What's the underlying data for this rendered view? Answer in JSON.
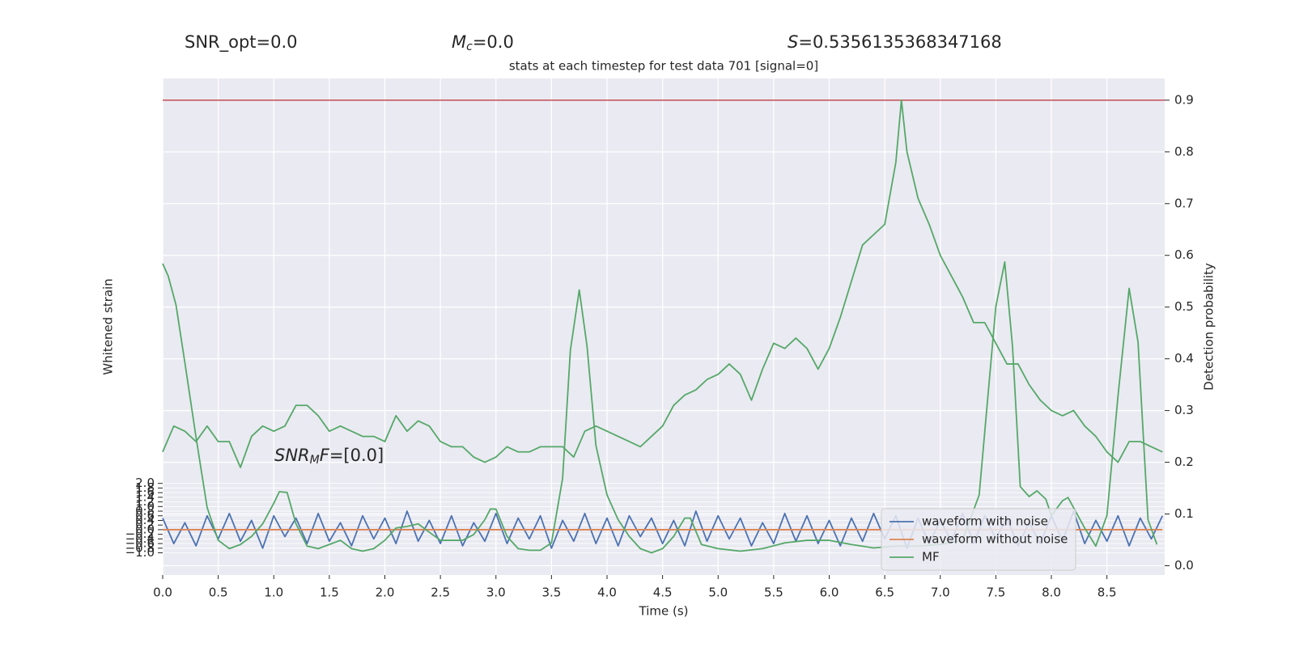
{
  "chart_data": {
    "type": "line",
    "title": "stats at each timestep for test data 701 [signal=0]",
    "header_texts": [
      [
        {
          "text": "SNR_opt=0.0",
          "style": "normal"
        }
      ],
      [
        {
          "text": "M",
          "style": "italic"
        },
        {
          "text": "c",
          "style": "italic-sub"
        },
        {
          "text": "=0.0",
          "style": "normal"
        }
      ],
      [
        {
          "text": "S",
          "style": "italic"
        },
        {
          "text": "=0.5356135368347168",
          "style": "normal"
        }
      ]
    ],
    "annotation": [
      {
        "text": "SNR",
        "style": "italic"
      },
      {
        "text": "M",
        "style": "italic-sub"
      },
      {
        "text": "F",
        "style": "italic"
      },
      {
        "text": "=[0.0]",
        "style": "normal"
      }
    ],
    "xlabel": "Time (s)",
    "ylabel": "Whitened strain",
    "y2label": "Detection probability",
    "xlim": [
      0,
      9.02
    ],
    "ylim": [
      -1.96,
      19.5
    ],
    "y2lim": [
      -0.018,
      0.942
    ],
    "xticks": [
      {
        "value": 0,
        "label": "0.0"
      },
      0.5,
      {
        "value": 1,
        "label": "1.0"
      },
      1.5,
      {
        "value": 2,
        "label": "2.0"
      },
      2.5,
      {
        "value": 3,
        "label": "3.0"
      },
      3.5,
      {
        "value": 4,
        "label": "4.0"
      },
      4.5,
      {
        "value": 5,
        "label": "5.0"
      },
      5.5,
      {
        "value": 6,
        "label": "6.0"
      },
      6.5,
      {
        "value": 7,
        "label": "7.0"
      },
      7.5,
      {
        "value": 8,
        "label": "8.0"
      },
      8.5
    ],
    "yticks": [
      {
        "value": -1,
        "label": "−1.0"
      },
      {
        "value": -0.8,
        "label": "−0.8"
      },
      {
        "value": -0.6,
        "label": "−0.6"
      },
      {
        "value": -0.4,
        "label": "−0.4"
      },
      {
        "value": -0.2,
        "label": "−0.2"
      },
      {
        "value": 0,
        "label": "0.0"
      },
      0.2,
      0.4,
      0.6,
      0.8,
      {
        "value": 1,
        "label": "1.0"
      },
      1.2,
      1.4,
      1.6,
      1.8,
      {
        "value": 2,
        "label": "2.0"
      }
    ],
    "y2ticks": [
      {
        "value": 0,
        "label": "0.0"
      },
      0.1,
      0.2,
      0.3,
      0.4,
      0.5,
      0.6,
      0.7,
      0.8,
      0.9
    ],
    "grid": true,
    "legend": "lower right",
    "hline": {
      "value": 0.9,
      "color": "#c44e52",
      "axis": "y2"
    },
    "series": [
      {
        "name": "waveform with noise",
        "color": "#4c72b0",
        "axis": "y",
        "x": [
          0.0,
          0.1,
          0.2,
          0.3,
          0.4,
          0.5,
          0.6,
          0.7,
          0.8,
          0.9,
          1.0,
          1.1,
          1.2,
          1.3,
          1.4,
          1.5,
          1.6,
          1.7,
          1.8,
          1.9,
          2.0,
          2.1,
          2.2,
          2.3,
          2.4,
          2.5,
          2.6,
          2.7,
          2.8,
          2.9,
          3.0,
          3.1,
          3.2,
          3.3,
          3.4,
          3.5,
          3.6,
          3.7,
          3.8,
          3.9,
          4.0,
          4.1,
          4.2,
          4.3,
          4.4,
          4.5,
          4.6,
          4.7,
          4.8,
          4.9,
          5.0,
          5.1,
          5.2,
          5.3,
          5.4,
          5.5,
          5.6,
          5.7,
          5.8,
          5.9,
          6.0,
          6.1,
          6.2,
          6.3,
          6.4,
          6.5,
          6.6,
          6.7,
          6.8,
          6.9,
          7.0,
          7.1,
          7.2,
          7.3,
          7.4,
          7.5,
          7.6,
          7.7,
          7.8,
          7.9,
          8.0,
          8.1,
          8.2,
          8.3,
          8.4,
          8.5,
          8.6,
          8.7,
          8.8,
          8.9,
          9.0
        ],
        "values": [
          0.5,
          -0.6,
          0.3,
          -0.7,
          0.6,
          -0.4,
          0.7,
          -0.5,
          0.4,
          -0.8,
          0.6,
          -0.3,
          0.5,
          -0.6,
          0.7,
          -0.5,
          0.3,
          -0.7,
          0.6,
          -0.4,
          0.5,
          -0.6,
          0.8,
          -0.5,
          0.4,
          -0.6,
          0.6,
          -0.7,
          0.3,
          -0.5,
          0.7,
          -0.6,
          0.5,
          -0.4,
          0.6,
          -0.8,
          0.4,
          -0.5,
          0.7,
          -0.6,
          0.5,
          -0.7,
          0.6,
          -0.3,
          0.5,
          -0.6,
          0.4,
          -0.7,
          0.8,
          -0.5,
          0.6,
          -0.4,
          0.5,
          -0.7,
          0.3,
          -0.6,
          0.7,
          -0.5,
          0.6,
          -0.6,
          0.4,
          -0.7,
          0.5,
          -0.5,
          0.7,
          -0.4,
          0.6,
          -0.8,
          0.5,
          -0.6,
          0.4,
          -0.5,
          0.7,
          -0.6,
          0.6,
          -0.4,
          0.5,
          -0.7,
          0.3,
          -0.6,
          0.6,
          -0.5,
          0.8,
          -0.6,
          0.4,
          -0.5,
          0.6,
          -0.7,
          0.5,
          -0.4,
          0.6
        ]
      },
      {
        "name": "waveform without noise",
        "color": "#dd8452",
        "axis": "y",
        "x": [
          0.0,
          9.0
        ],
        "values": [
          0,
          0
        ]
      },
      {
        "name": "MF",
        "color": "#55a868",
        "axis": "y",
        "x": [
          0.0,
          0.05,
          0.12,
          0.2,
          0.3,
          0.4,
          0.5,
          0.6,
          0.7,
          0.8,
          0.9,
          1.0,
          1.05,
          1.12,
          1.2,
          1.3,
          1.4,
          1.5,
          1.6,
          1.7,
          1.8,
          1.9,
          2.0,
          2.1,
          2.2,
          2.3,
          2.4,
          2.5,
          2.6,
          2.7,
          2.8,
          2.9,
          2.95,
          3.0,
          3.1,
          3.2,
          3.3,
          3.4,
          3.5,
          3.6,
          3.67,
          3.75,
          3.82,
          3.9,
          4.0,
          4.1,
          4.2,
          4.3,
          4.4,
          4.5,
          4.6,
          4.7,
          4.75,
          4.85,
          5.0,
          5.2,
          5.4,
          5.6,
          5.8,
          6.0,
          6.2,
          6.4,
          6.6,
          6.8,
          7.0,
          7.2,
          7.35,
          7.5,
          7.58,
          7.65,
          7.72,
          7.8,
          7.87,
          7.95,
          8.0,
          8.1,
          8.15,
          8.3,
          8.4,
          8.5,
          8.6,
          8.7,
          8.78,
          8.87,
          8.95
        ],
        "values": [
          11.5,
          10.96,
          9.71,
          7.21,
          4.0,
          0.96,
          -0.46,
          -0.82,
          -0.64,
          -0.29,
          0.25,
          1.14,
          1.64,
          1.61,
          0.25,
          -0.71,
          -0.82,
          -0.64,
          -0.46,
          -0.82,
          -0.93,
          -0.82,
          -0.46,
          0.07,
          0.14,
          0.25,
          -0.11,
          -0.46,
          -0.46,
          -0.46,
          -0.21,
          0.43,
          0.89,
          0.89,
          -0.29,
          -0.82,
          -0.89,
          -0.89,
          -0.57,
          2.21,
          7.75,
          10.36,
          7.93,
          3.64,
          1.5,
          0.43,
          -0.29,
          -0.82,
          -1.0,
          -0.82,
          -0.29,
          0.5,
          0.5,
          -0.64,
          -0.82,
          -0.93,
          -0.82,
          -0.57,
          -0.46,
          -0.46,
          -0.64,
          -0.79,
          -0.71,
          -0.71,
          -0.64,
          -0.46,
          1.5,
          9.64,
          11.57,
          7.93,
          1.86,
          1.43,
          1.68,
          1.32,
          0.61,
          1.25,
          1.39,
          0.07,
          -0.71,
          0.61,
          5.79,
          10.43,
          8.11,
          0.43,
          -0.64
        ]
      },
      {
        "color": "#55a868",
        "axis": "y2",
        "x": [
          0.0,
          0.1,
          0.2,
          0.3,
          0.4,
          0.5,
          0.6,
          0.7,
          0.8,
          0.9,
          1.0,
          1.1,
          1.2,
          1.3,
          1.4,
          1.5,
          1.6,
          1.7,
          1.8,
          1.9,
          2.0,
          2.1,
          2.2,
          2.3,
          2.4,
          2.5,
          2.6,
          2.7,
          2.8,
          2.9,
          3.0,
          3.1,
          3.2,
          3.3,
          3.4,
          3.5,
          3.6,
          3.7,
          3.8,
          3.9,
          4.0,
          4.1,
          4.2,
          4.3,
          4.4,
          4.5,
          4.6,
          4.7,
          4.8,
          4.9,
          5.0,
          5.1,
          5.2,
          5.3,
          5.4,
          5.5,
          5.6,
          5.7,
          5.8,
          5.9,
          6.0,
          6.1,
          6.2,
          6.3,
          6.4,
          6.5,
          6.6,
          6.65,
          6.7,
          6.8,
          6.9,
          7.0,
          7.1,
          7.2,
          7.3,
          7.4,
          7.5,
          7.6,
          7.7,
          7.8,
          7.9,
          8.0,
          8.1,
          8.2,
          8.3,
          8.4,
          8.5,
          8.6,
          8.7,
          8.8,
          8.9,
          9.0
        ],
        "values": [
          0.22,
          0.27,
          0.26,
          0.24,
          0.27,
          0.24,
          0.24,
          0.19,
          0.25,
          0.27,
          0.26,
          0.27,
          0.31,
          0.31,
          0.29,
          0.26,
          0.27,
          0.26,
          0.25,
          0.25,
          0.24,
          0.29,
          0.26,
          0.28,
          0.27,
          0.24,
          0.23,
          0.23,
          0.21,
          0.2,
          0.21,
          0.23,
          0.22,
          0.22,
          0.23,
          0.23,
          0.23,
          0.21,
          0.26,
          0.27,
          0.26,
          0.25,
          0.24,
          0.23,
          0.25,
          0.27,
          0.31,
          0.33,
          0.34,
          0.36,
          0.37,
          0.39,
          0.37,
          0.32,
          0.38,
          0.43,
          0.42,
          0.44,
          0.42,
          0.38,
          0.42,
          0.48,
          0.55,
          0.62,
          0.64,
          0.66,
          0.78,
          0.9,
          0.8,
          0.71,
          0.66,
          0.6,
          0.56,
          0.52,
          0.47,
          0.47,
          0.43,
          0.39,
          0.39,
          0.35,
          0.32,
          0.3,
          0.29,
          0.3,
          0.27,
          0.25,
          0.22,
          0.2,
          0.24,
          0.24,
          0.23,
          0.22
        ]
      }
    ]
  }
}
